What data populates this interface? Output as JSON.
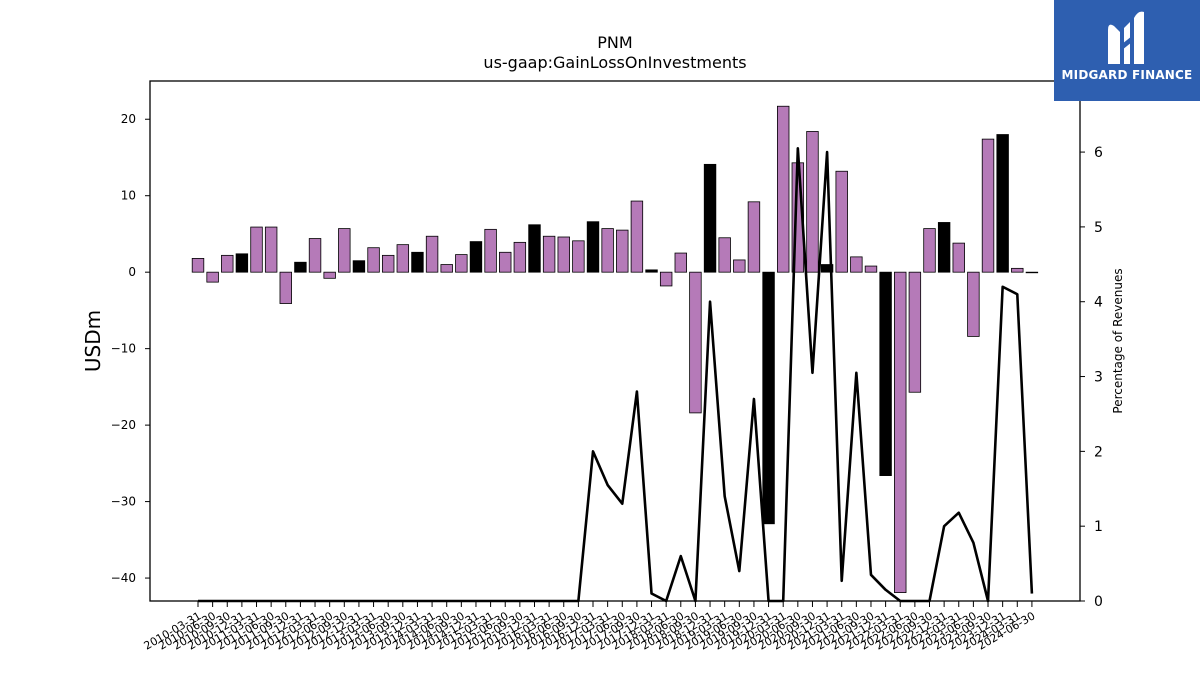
{
  "brand": {
    "name": "MIDGARD FINANCE",
    "logo_icon": "midgard-m-icon",
    "bg_color": "#2e5fb0"
  },
  "chart_data": {
    "type": "bar",
    "title": "PNM",
    "subtitle": "us-gaap:GainLossOnInvestments",
    "ylabel": "USDm",
    "y2label": "Percentage of Revenues",
    "ylim": [
      -43,
      25
    ],
    "y2lim": [
      0,
      6.95
    ],
    "yticks": [
      -40,
      -30,
      -20,
      -10,
      0,
      10,
      20
    ],
    "y2ticks": [
      0,
      1,
      2,
      3,
      4,
      5,
      6
    ],
    "grid": false,
    "colors": {
      "bar": "#b57ab8",
      "bar_q4": "#000000",
      "line": "#000000"
    },
    "categories": [
      "2010-03-31",
      "2010-06-30",
      "2010-09-30",
      "2010-12-31",
      "2011-03-31",
      "2011-06-30",
      "2011-09-30",
      "2011-12-31",
      "2012-03-31",
      "2012-06-30",
      "2012-09-30",
      "2012-12-31",
      "2013-03-31",
      "2013-06-30",
      "2013-09-30",
      "2013-12-31",
      "2014-03-31",
      "2014-06-30",
      "2014-09-30",
      "2014-12-31",
      "2015-03-31",
      "2015-06-30",
      "2015-09-30",
      "2015-12-31",
      "2016-03-31",
      "2016-06-30",
      "2016-09-30",
      "2016-12-31",
      "2017-03-31",
      "2017-06-30",
      "2017-09-30",
      "2017-12-31",
      "2018-03-31",
      "2018-06-30",
      "2018-09-30",
      "2018-12-31",
      "2019-03-31",
      "2019-06-30",
      "2019-09-30",
      "2019-12-31",
      "2020-03-31",
      "2020-06-30",
      "2020-09-30",
      "2020-12-31",
      "2021-03-31",
      "2021-06-30",
      "2021-09-30",
      "2021-12-31",
      "2022-03-31",
      "2022-06-30",
      "2022-09-30",
      "2022-12-31",
      "2023-03-31",
      "2023-06-30",
      "2023-09-30",
      "2023-12-31",
      "2024-03-31",
      "2024-06-30"
    ],
    "series": [
      {
        "values": [
          1.8,
          -1.3,
          2.2,
          2.4,
          5.9,
          5.9,
          -4.1,
          1.3,
          4.4,
          -0.8,
          5.7,
          1.5,
          3.2,
          2.2,
          3.6,
          2.6,
          4.7,
          1.0,
          2.3,
          4.0,
          5.6,
          2.6,
          3.9,
          6.2,
          4.7,
          4.6,
          4.1,
          6.6,
          5.7,
          5.5,
          9.3,
          0.3,
          -1.8,
          2.5,
          -18.4,
          14.1,
          4.5,
          1.6,
          9.2,
          -32.9,
          21.7,
          14.3,
          18.4,
          1.0,
          13.2,
          2.0,
          0.8,
          -26.6,
          -41.9,
          -15.7,
          5.7,
          6.5,
          3.8,
          -8.4,
          17.4,
          18.0,
          0.5,
          0.0
        ]
      },
      {
        "axis": "right",
        "values": [
          0,
          0,
          0,
          0,
          0,
          0,
          0,
          0,
          0,
          0,
          0,
          0,
          0,
          0,
          0,
          0,
          0,
          0,
          0,
          0,
          0,
          0,
          0,
          0,
          0,
          0,
          0,
          2.0,
          1.55,
          1.3,
          2.8,
          0.1,
          0,
          0.6,
          0,
          4.0,
          1.4,
          0.4,
          2.7,
          0,
          0,
          6.05,
          3.05,
          6.0,
          0.27,
          3.05,
          0.35,
          0.15,
          0,
          0,
          0,
          1.0,
          1.18,
          0.78,
          0,
          4.2,
          4.1,
          0.1
        ]
      }
    ],
    "tick_labels": [
      "2010-03-31",
      "2010-06-30",
      "2010-09-30",
      "2010-12-31",
      "2011-03-31",
      "2011-06-30",
      "2011-09-30",
      "2011-12-31",
      "2012-03-31",
      "2012-06-30",
      "2012-09-30",
      "2012-12-31",
      "2013-03-31",
      "2013-06-30",
      "2013-09-30",
      "2013-12-31",
      "2014-03-31",
      "2014-06-30",
      "2014-09-30",
      "2014-12-31",
      "2015-03-31",
      "2015-06-30",
      "2015-09-30",
      "2015-12-31",
      "2016-03-31",
      "2016-06-30",
      "2016-09-30",
      "2016-12-31",
      "2017-03-31",
      "2017-06-30",
      "2017-09-30",
      "2017-12-31",
      "2018-03-31",
      "2018-06-30",
      "2018-09-30",
      "2018-12-31",
      "2019-03-31",
      "2019-06-30",
      "2019-09-30",
      "2019-12-31",
      "2020-03-31",
      "2020-06-30",
      "2020-09-30",
      "2020-12-31",
      "2021-03-31",
      "2021-06-30",
      "2021-09-30",
      "2021-12-31",
      "2022-03-31",
      "2022-06-30",
      "2022-09-30",
      "2022-12-31",
      "2023-03-31",
      "2023-06-30",
      "2023-09-30",
      "2023-12-31",
      "2024-03-31",
      "2024-06-30"
    ]
  }
}
